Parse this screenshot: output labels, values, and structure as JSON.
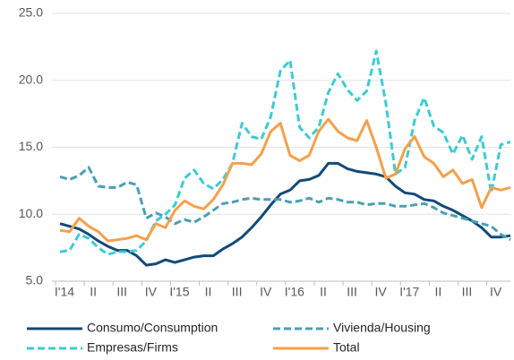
{
  "chart_data": {
    "type": "line",
    "categories": [
      "I'14",
      null,
      null,
      "II",
      null,
      null,
      "III",
      null,
      null,
      "IV",
      null,
      null,
      "I'15",
      null,
      null,
      "II",
      null,
      null,
      "III",
      null,
      null,
      "IV",
      null,
      null,
      "I'16",
      null,
      null,
      "II",
      null,
      null,
      "III",
      null,
      null,
      "IV",
      null,
      null,
      "I'17",
      null,
      null,
      "II",
      null,
      null,
      "III",
      null,
      null,
      "IV",
      null,
      null
    ],
    "series": [
      {
        "name": "Consumo/Consumption",
        "color": "#124a78",
        "dash": false,
        "values": [
          9.3,
          9.1,
          8.9,
          8.5,
          8.0,
          7.6,
          7.3,
          7.3,
          6.9,
          6.2,
          6.3,
          6.6,
          6.4,
          6.6,
          6.8,
          6.9,
          6.9,
          7.4,
          7.8,
          8.3,
          9.0,
          9.8,
          10.7,
          11.5,
          11.8,
          12.5,
          12.6,
          12.9,
          13.8,
          13.8,
          13.4,
          13.2,
          13.1,
          13.0,
          12.8,
          12.1,
          11.6,
          11.5,
          11.1,
          11.0,
          10.6,
          10.3,
          9.9,
          9.5,
          9.0,
          8.3,
          8.3,
          8.4
        ]
      },
      {
        "name": "Vivienda/Housing",
        "color": "#4a9fb3",
        "dash": true,
        "values": [
          12.8,
          12.6,
          12.9,
          13.5,
          12.1,
          12.0,
          12.0,
          12.4,
          12.2,
          9.7,
          10.1,
          9.8,
          9.3,
          9.6,
          9.4,
          9.8,
          10.3,
          10.8,
          10.9,
          11.1,
          11.2,
          11.1,
          11.1,
          11.1,
          10.9,
          11.0,
          11.2,
          10.9,
          11.2,
          11.1,
          10.9,
          10.9,
          10.7,
          10.8,
          10.8,
          10.6,
          10.6,
          10.7,
          10.8,
          10.5,
          10.1,
          9.9,
          9.7,
          9.5,
          9.3,
          9.1,
          8.5,
          8.1
        ]
      },
      {
        "name": "Empresas/Firms",
        "color": "#3dcbd3",
        "dash": true,
        "values": [
          7.2,
          7.3,
          8.5,
          8.2,
          7.5,
          7.0,
          7.2,
          7.2,
          7.3,
          8.0,
          9.5,
          10.0,
          10.7,
          12.7,
          13.3,
          12.3,
          11.9,
          12.6,
          13.8,
          16.8,
          15.8,
          15.6,
          17.3,
          20.7,
          21.5,
          16.5,
          15.7,
          16.5,
          19.1,
          20.5,
          19.3,
          18.5,
          19.2,
          22.2,
          18.3,
          13.0,
          13.5,
          17.0,
          18.7,
          16.6,
          16.1,
          14.5,
          15.9,
          14.1,
          15.8,
          11.6,
          15.2,
          15.4
        ]
      },
      {
        "name": "Total",
        "color": "#f4a04c",
        "dash": false,
        "values": [
          8.8,
          8.7,
          9.7,
          9.1,
          8.7,
          8.0,
          8.1,
          8.2,
          8.4,
          8.1,
          9.3,
          9.0,
          10.3,
          11.0,
          10.6,
          10.4,
          11.1,
          12.2,
          13.8,
          13.8,
          13.7,
          14.5,
          16.2,
          16.8,
          14.4,
          14.0,
          14.4,
          16.2,
          17.1,
          16.2,
          15.7,
          15.5,
          17.0,
          15.0,
          12.7,
          13.0,
          14.9,
          15.8,
          14.3,
          13.8,
          12.8,
          13.3,
          12.3,
          12.6,
          10.5,
          12.0,
          11.8,
          12.0
        ]
      }
    ],
    "ylim": [
      5,
      25
    ],
    "yticks": [
      {
        "value": 5,
        "label": "5.0"
      },
      {
        "value": 10,
        "label": "10.0"
      },
      {
        "value": 15,
        "label": "15.0"
      },
      {
        "value": 20,
        "label": "20.0"
      },
      {
        "value": 25,
        "label": "25.0"
      }
    ],
    "grid": true
  }
}
